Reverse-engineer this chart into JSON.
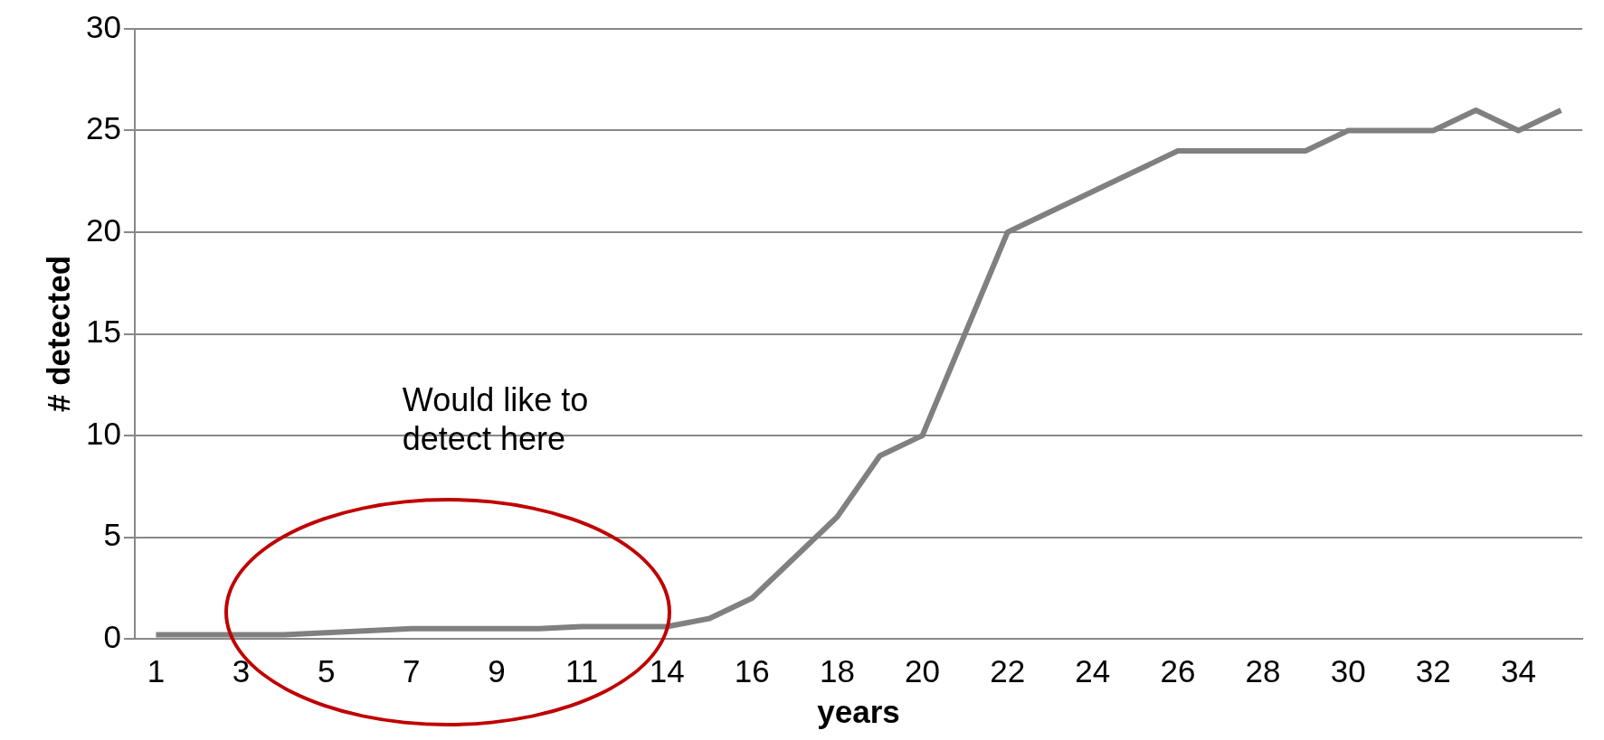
{
  "chart_data": {
    "type": "line",
    "xlabel": "years",
    "ylabel": "# detected",
    "categories": [
      "1",
      null,
      "3",
      null,
      "5",
      null,
      "7",
      null,
      "9",
      null,
      "11",
      null,
      "14",
      null,
      "16",
      null,
      "18",
      null,
      "20",
      null,
      "22",
      null,
      "24",
      null,
      "26",
      null,
      "28",
      null,
      "30",
      null,
      "32",
      null,
      "34",
      null
    ],
    "series": [
      {
        "color": "#808080",
        "values": [
          0.2,
          0.2,
          0.2,
          0.2,
          0.3,
          0.4,
          0.5,
          0.5,
          0.5,
          0.5,
          0.6,
          0.6,
          0.6,
          1,
          2,
          4,
          6,
          9,
          10,
          15,
          20,
          21,
          22,
          23,
          24,
          24,
          24,
          24,
          25,
          25,
          25,
          26,
          25,
          26
        ]
      }
    ],
    "ylim": [
      0,
      30
    ],
    "yticks": [
      0,
      5,
      10,
      15,
      20,
      25,
      30
    ],
    "grid": "y",
    "legend": false,
    "marker": "none",
    "line_style": "solid",
    "annotations": [
      "Would like to detect here"
    ]
  }
}
